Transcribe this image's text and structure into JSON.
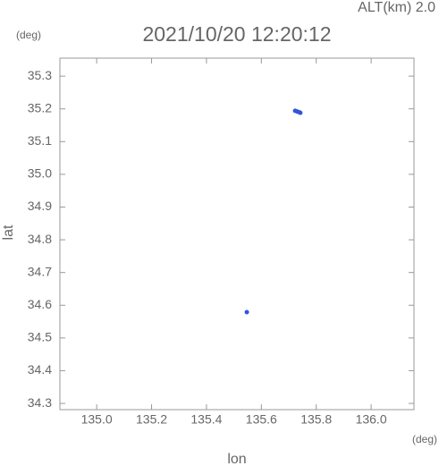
{
  "chart_data": {
    "type": "scatter",
    "title": "2021/10/20 12:20:12",
    "annotation": "ALT(km) 2.0",
    "xlabel": "lon",
    "ylabel": "lat",
    "xunit": "(deg)",
    "yunit": "(deg)",
    "x": [
      135.723,
      135.73,
      135.737,
      135.742,
      135.547
    ],
    "y": [
      35.194,
      35.192,
      35.19,
      35.188,
      34.579
    ],
    "color": "#3355dd",
    "xlim": [
      134.866,
      136.156
    ],
    "ylim": [
      34.281,
      35.355
    ],
    "xticks": [
      {
        "value": 135,
        "label": "135.0"
      },
      135.2,
      135.4,
      135.6,
      135.8,
      {
        "value": 136,
        "label": "136.0"
      }
    ],
    "yticks": [
      34.3,
      34.4,
      34.5,
      34.6,
      34.7,
      34.8,
      34.9,
      {
        "value": 35,
        "label": "35.0"
      },
      35.1,
      35.2,
      35.3
    ]
  }
}
